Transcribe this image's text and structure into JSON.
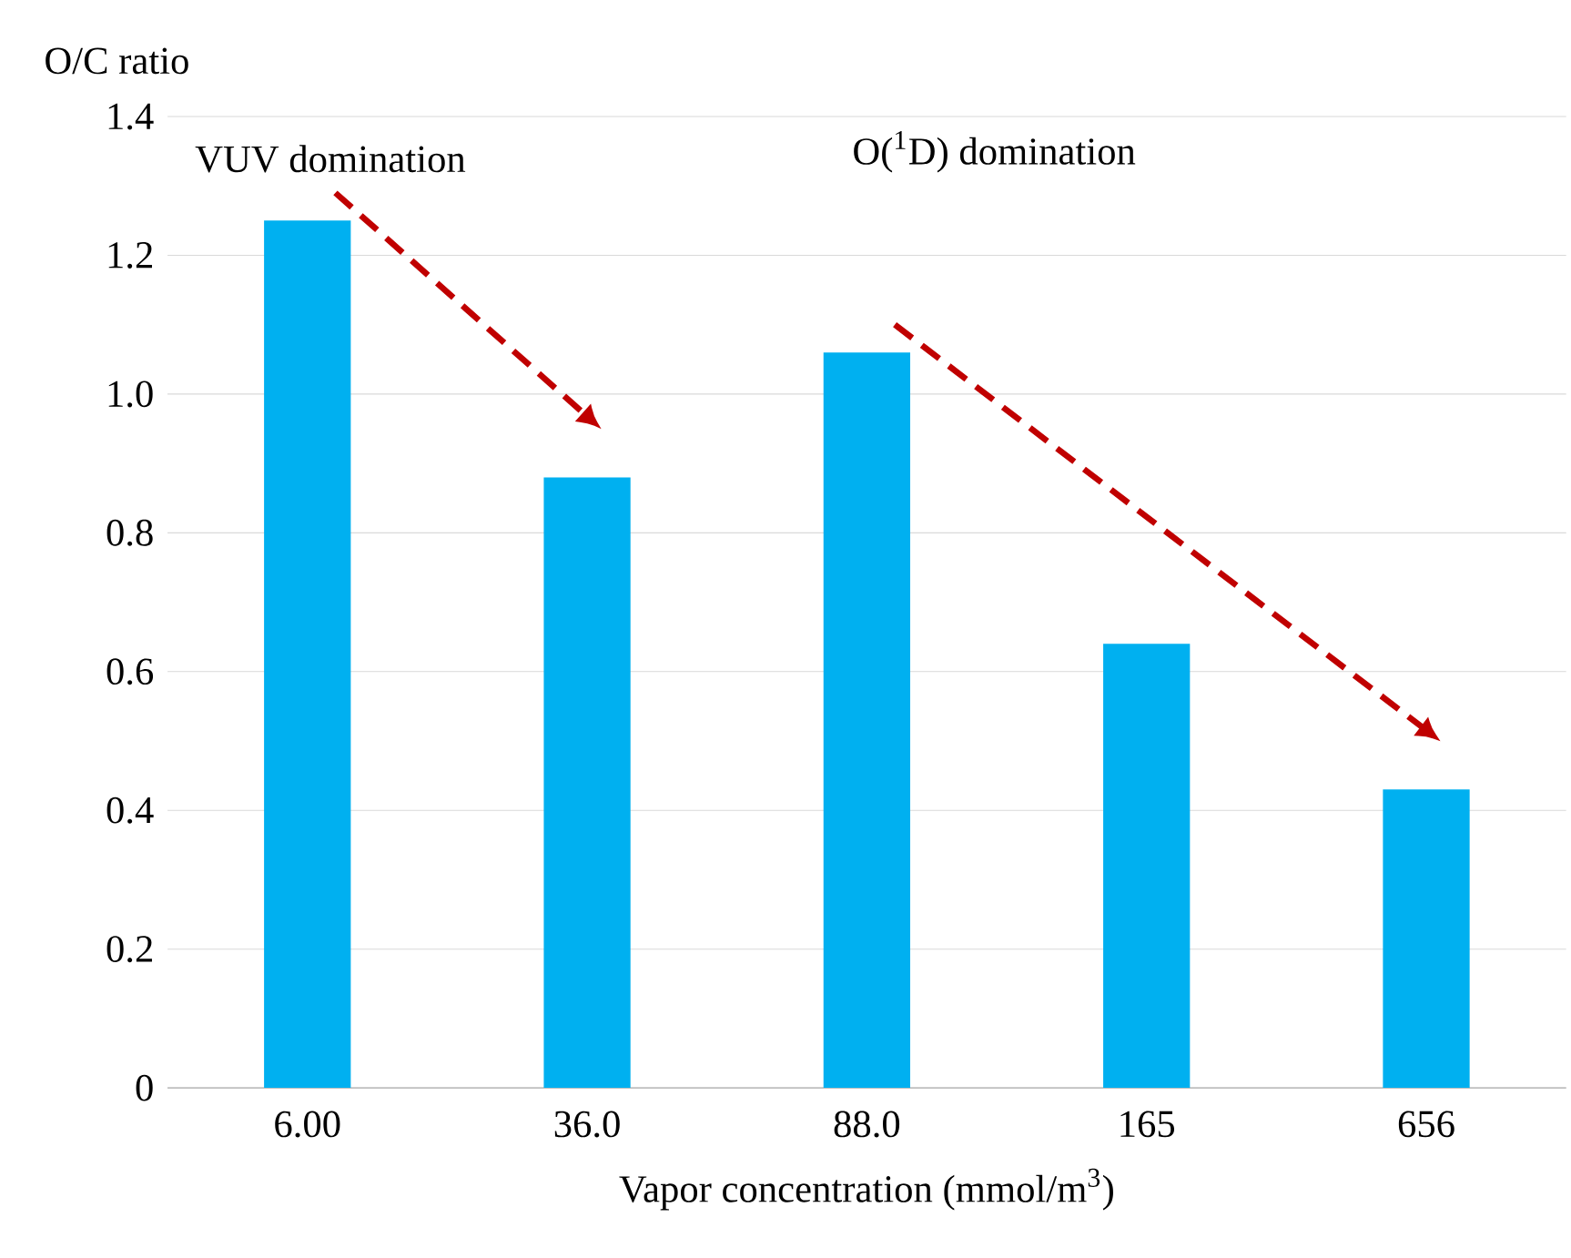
{
  "chart_data": {
    "type": "bar",
    "xlabel": "Vapor concentration (mmol/m$^{3}$)",
    "ylabel": "O/C ratio",
    "categories": [
      "6.00",
      "36.0",
      "88.0",
      "165",
      "656"
    ],
    "values": [
      1.25,
      0.88,
      1.06,
      0.64,
      0.43
    ],
    "color": "#00b0f0",
    "ylim": [
      0,
      1.4
    ],
    "yticks": [
      0,
      {
        "value": 0.2,
        "label": "0.2"
      },
      {
        "value": 0.4,
        "label": "0.4"
      },
      {
        "value": 0.6,
        "label": "0.6"
      },
      {
        "value": 0.8,
        "label": "0.8"
      },
      {
        "value": 1.0,
        "label": "1.0"
      },
      {
        "value": 1.2,
        "label": "1.2"
      },
      {
        "value": 1.4,
        "label": "1.4"
      }
    ],
    "grid": "y",
    "annotations": [
      "VUV domination",
      "O($^{1}$D) domination"
    ]
  }
}
